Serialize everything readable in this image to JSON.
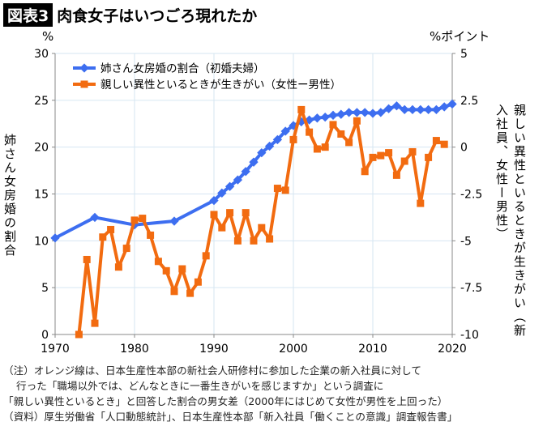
{
  "header": {
    "badge": "図表3",
    "title": "肉食女子はいつごろ現れたか"
  },
  "chart_data": {
    "type": "line",
    "left_unit": "%",
    "right_unit": "%ポイント",
    "ylabel": "姉さん女房婚の割合",
    "y2label": "親しい異性といるときが生きがい（新入社員、女性ー男性）",
    "xlim": [
      1970,
      2020
    ],
    "ylim": [
      0,
      30
    ],
    "y2lim": [
      -10,
      5
    ],
    "xticks": [
      1970,
      1980,
      1990,
      2000,
      2010,
      2020
    ],
    "yticks": [
      0,
      5,
      10,
      15,
      20,
      25,
      30
    ],
    "y2ticks": [
      "-10",
      "-7.5",
      "-5",
      "-2.5",
      "0",
      "2.5",
      "5"
    ],
    "y2tickvals": [
      -10,
      -7.5,
      -5,
      -2.5,
      0,
      2.5,
      5
    ],
    "grid": true,
    "legend": "top-left",
    "series": [
      {
        "name": "姉さん女房婚の割合（初婚夫婦）",
        "axis": "left",
        "color": "#3d6ef0",
        "marker": "diamond",
        "x": [
          1970,
          1975,
          1980,
          1985,
          1990,
          1991,
          1992,
          1993,
          1994,
          1995,
          1996,
          1997,
          1998,
          1999,
          2000,
          2001,
          2002,
          2003,
          2004,
          2005,
          2006,
          2007,
          2008,
          2009,
          2010,
          2011,
          2012,
          2013,
          2014,
          2015,
          2016,
          2017,
          2018,
          2019,
          2020
        ],
        "values": [
          10.3,
          12.5,
          11.7,
          12.1,
          14.3,
          15.1,
          15.8,
          16.5,
          17.4,
          18.4,
          19.4,
          20.1,
          20.8,
          21.7,
          22.3,
          22.7,
          22.9,
          23.1,
          23.2,
          23.4,
          23.5,
          23.7,
          23.7,
          23.7,
          23.6,
          23.7,
          24.1,
          24.4,
          24.0,
          24.0,
          24.0,
          24.0,
          24.0,
          24.3,
          24.6
        ]
      },
      {
        "name": "親しい異性といるときが生きがい（女性ー男性）",
        "axis": "right",
        "color": "#f26b10",
        "marker": "square",
        "x": [
          1973,
          1974,
          1975,
          1976,
          1977,
          1978,
          1979,
          1980,
          1981,
          1982,
          1983,
          1984,
          1985,
          1986,
          1987,
          1988,
          1989,
          1990,
          1991,
          1992,
          1993,
          1994,
          1995,
          1996,
          1997,
          1998,
          1999,
          2000,
          2001,
          2002,
          2003,
          2004,
          2005,
          2006,
          2007,
          2008,
          2009,
          2010,
          2011,
          2012,
          2013,
          2014,
          2015,
          2016,
          2017,
          2018,
          2019
        ],
        "values": [
          -10,
          -6,
          -9.4,
          -4.8,
          -4.4,
          -6.4,
          -5.4,
          -3.9,
          -3.8,
          -4.7,
          -6.1,
          -6.6,
          -7.7,
          -6.5,
          -7.8,
          -7.2,
          -5.8,
          -3.6,
          -4.3,
          -3.5,
          -5.0,
          -3.5,
          -5.0,
          -4.3,
          -4.9,
          -2.2,
          -2.3,
          0.4,
          2.0,
          0.8,
          -0.1,
          0.0,
          1.2,
          0.7,
          0.25,
          1.4,
          -1.3,
          -0.55,
          -0.45,
          -0.3,
          -1.5,
          -0.75,
          -0.25,
          -3.0,
          -0.55,
          0.35,
          0.15
        ]
      }
    ]
  },
  "notes": [
    "（注）オレンジ線は、日本生産性本部の新社会人研修村に参加した企業の新入社員に対して",
    "行った「職場以外では、どんなときに一番生きがいを感じますか」という調査に",
    "「親しい異性といるとき」と回答した割合の男女差（2000年にはじめて女性が男性を上回った）",
    "（資料）厚生労働省「人口動態統計」、日本生産性本部「新入社員「働くことの意識」調査報告書」"
  ]
}
